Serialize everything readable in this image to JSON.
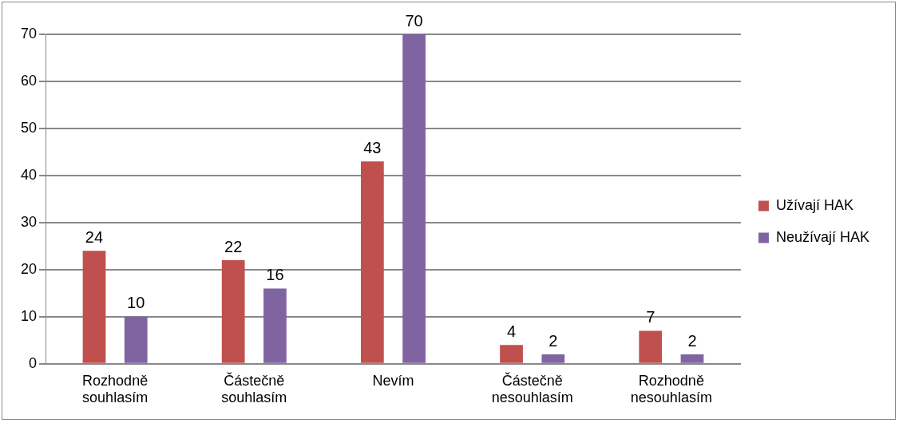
{
  "chart_data": {
    "type": "bar",
    "categories": [
      "Rozhodně souhlasím",
      "Částečně souhlasím",
      "Nevím",
      "Částečně nesouhlasím",
      "Rozhodně nesouhlasím"
    ],
    "series": [
      {
        "name": "Užívají HAK",
        "color": "#c0504d",
        "values": [
          24,
          22,
          43,
          4,
          7
        ]
      },
      {
        "name": "Neužívají HAK",
        "color": "#8064a2",
        "values": [
          10,
          16,
          70,
          2,
          2
        ]
      }
    ],
    "ylim": [
      0,
      70
    ],
    "yticks": [
      0,
      10,
      20,
      30,
      40,
      50,
      60,
      70
    ],
    "grid": "y",
    "legend": "right",
    "data_labels": true
  }
}
